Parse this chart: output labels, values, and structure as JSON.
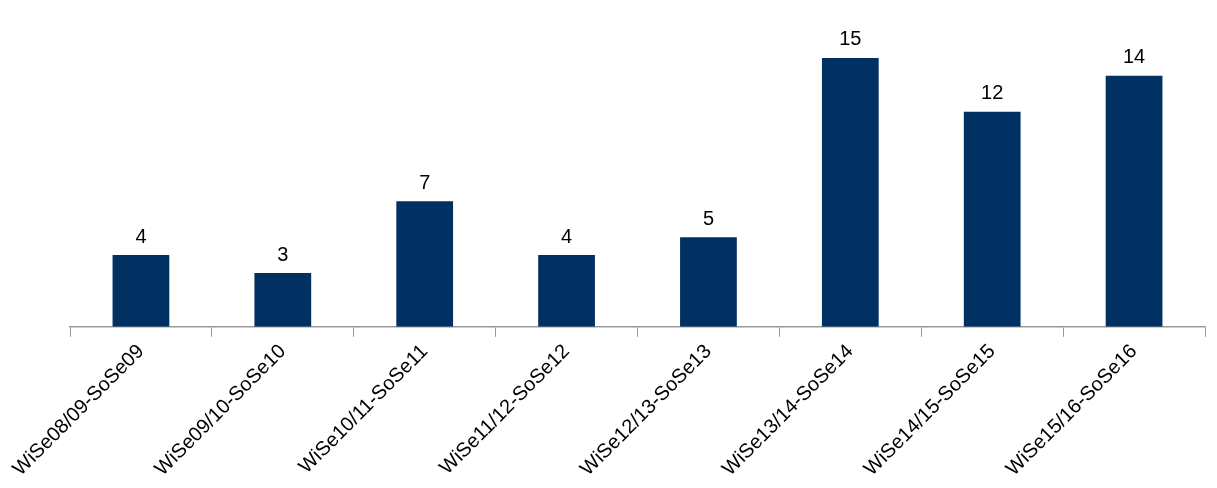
{
  "chart_data": {
    "type": "bar",
    "categories": [
      "WiSe08/09-SoSe09",
      "WiSe09/10-SoSe10",
      "WiSe10/11-SoSe11",
      "WiSe11/12-SoSe12",
      "WiSe12/13-SoSe13",
      "WiSe13/14-SoSe14",
      "WiSe14/15-SoSe15",
      "WiSe15/16-SoSe16"
    ],
    "values": [
      4,
      3,
      7,
      4,
      5,
      15,
      12,
      14
    ],
    "color": "#003162",
    "data_labels": true,
    "grid": false,
    "legend": false,
    "tick_labels": "x"
  }
}
